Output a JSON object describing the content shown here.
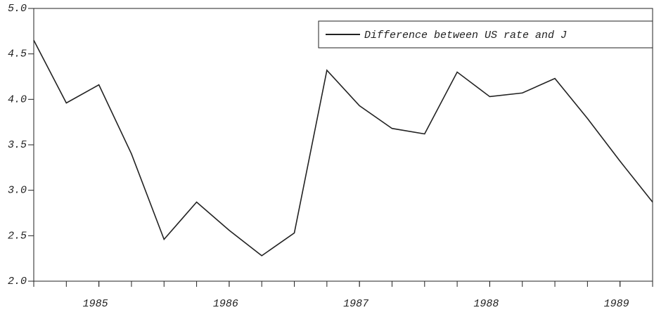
{
  "chart_data": {
    "type": "line",
    "x": [
      1984.5,
      1984.75,
      1985,
      1985.25,
      1985.5,
      1985.75,
      1986,
      1986.25,
      1986.5,
      1986.75,
      1987,
      1987.25,
      1987.5,
      1987.75,
      1988,
      1988.25,
      1988.5,
      1988.75,
      1989,
      1989.25
    ],
    "series": [
      {
        "name": "Difference between US rate and J",
        "color": "#222222",
        "values": [
          4.65,
          3.96,
          4.16,
          3.4,
          2.46,
          2.87,
          2.56,
          2.28,
          2.53,
          4.32,
          3.93,
          3.68,
          3.62,
          4.3,
          4.03,
          4.07,
          4.23,
          3.79,
          3.32,
          2.87
        ]
      }
    ],
    "xlim": [
      1984.5,
      1989.25
    ],
    "xticks": [
      1985,
      1986,
      1987,
      1988,
      1989
    ],
    "ylim": [
      2.0,
      5.0
    ],
    "yticks": [
      {
        "value": 2.0,
        "label": "2.0"
      },
      {
        "value": 2.5,
        "label": "2.5"
      },
      {
        "value": 3.0,
        "label": "3.0"
      },
      {
        "value": 3.5,
        "label": "3.5"
      },
      {
        "value": 4.0,
        "label": "4.0"
      },
      {
        "value": 4.5,
        "label": "4.5"
      },
      {
        "value": 5.0,
        "label": "5.0"
      }
    ],
    "legend": "upper right"
  }
}
